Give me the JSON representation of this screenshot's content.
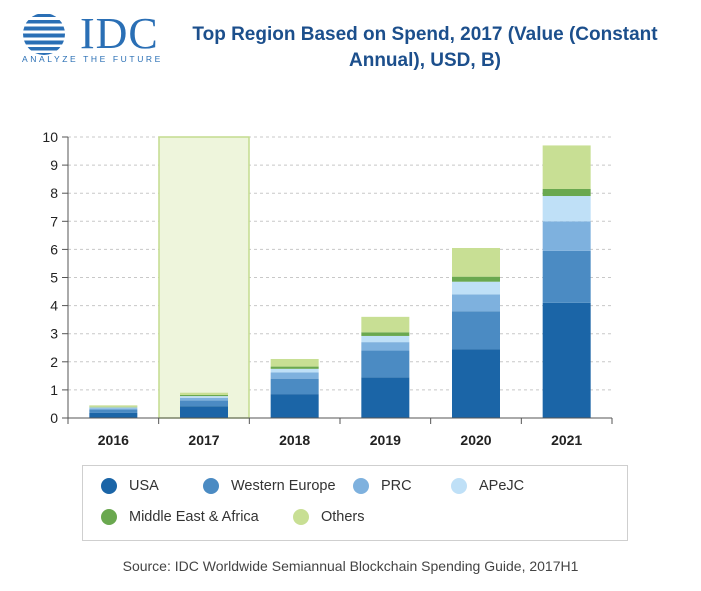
{
  "logo": {
    "text": "IDC",
    "tagline": "ANALYZE THE FUTURE"
  },
  "chart_data": {
    "type": "bar",
    "stacked": true,
    "title": "Top Region Based on Spend, 2017 (Value (Constant Annual), USD, B)",
    "categories": [
      "2016",
      "2017",
      "2018",
      "2019",
      "2020",
      "2021"
    ],
    "highlight_category": "2017",
    "ylim": [
      0,
      10
    ],
    "yticks": [
      0,
      1,
      2,
      3,
      4,
      5,
      6,
      7,
      8,
      9,
      10
    ],
    "grid": true,
    "series": [
      {
        "name": "USA",
        "color": "#1b65a7",
        "values": [
          0.18,
          0.42,
          0.85,
          1.45,
          2.45,
          4.1
        ]
      },
      {
        "name": "Western Europe",
        "color": "#4b8bc3",
        "values": [
          0.12,
          0.2,
          0.55,
          0.95,
          1.35,
          1.85
        ]
      },
      {
        "name": "PRC",
        "color": "#7eb1de",
        "values": [
          0.05,
          0.1,
          0.22,
          0.3,
          0.6,
          1.05
        ]
      },
      {
        "name": "APeJC",
        "color": "#bfe0f7",
        "values": [
          0.03,
          0.06,
          0.13,
          0.22,
          0.45,
          0.9
        ]
      },
      {
        "name": "Middle East & Africa",
        "color": "#6aa84f",
        "values": [
          0.02,
          0.04,
          0.08,
          0.13,
          0.18,
          0.25
        ]
      },
      {
        "name": "Others",
        "color": "#c8df94",
        "values": [
          0.05,
          0.08,
          0.27,
          0.55,
          1.02,
          1.55
        ]
      }
    ]
  },
  "source": "Source: IDC Worldwide Semiannual Blockchain Spending Guide, 2017H1"
}
